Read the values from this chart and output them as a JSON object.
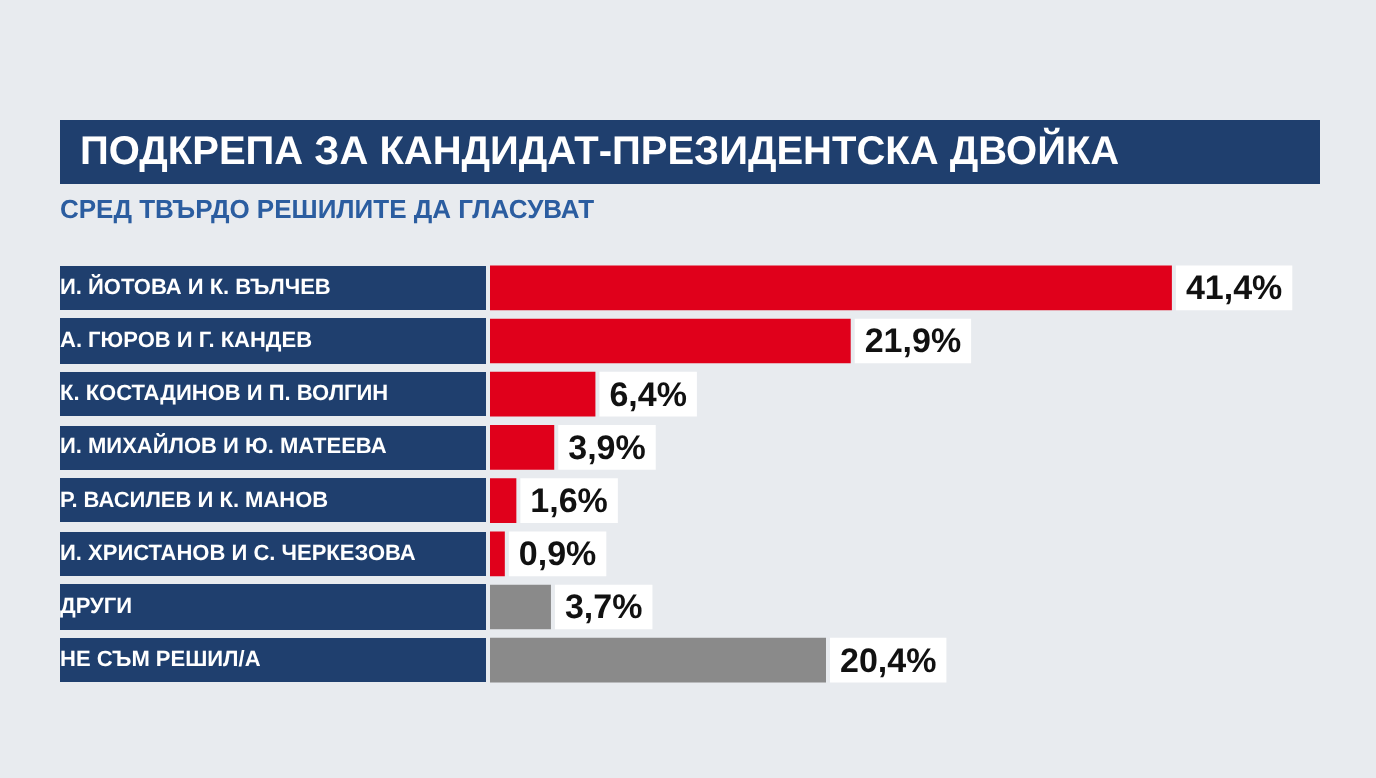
{
  "chart_data": {
    "type": "bar",
    "orientation": "horizontal",
    "title": "ПОДКРЕПА ЗА КАНДИДАТ-ПРЕЗИДЕНТСКА ДВОЙКА",
    "subtitle": "СРЕД ТВЪРДО РЕШИЛИТЕ ДА ГЛАСУВАТ",
    "categories": [
      "И. ЙОТОВА И К. ВЪЛЧЕВ",
      "А. ГЮРОВ И Г. КАНДЕВ",
      "К. КОСТАДИНОВ И П. ВОЛГИН",
      "И. МИХАЙЛОВ И Ю. МАТЕЕВА",
      "Р. ВАСИЛЕВ И К. МАНОВ",
      "И. ХРИСТАНОВ И С. ЧЕРКЕЗОВА",
      "ДРУГИ",
      "НЕ СЪМ РЕШИЛ/А"
    ],
    "values": [
      41.4,
      21.9,
      6.4,
      3.9,
      1.6,
      0.9,
      3.7,
      20.4
    ],
    "value_labels": [
      "41,4%",
      "21,9%",
      "6,4%",
      "3,9%",
      "1,6%",
      "0,9%",
      "3,7%",
      "20,4%"
    ],
    "colors": [
      "#e0001b",
      "#e0001b",
      "#e0001b",
      "#e0001b",
      "#e0001b",
      "#e0001b",
      "#8a8a8a",
      "#8a8a8a"
    ],
    "grid": false,
    "legend": false
  }
}
